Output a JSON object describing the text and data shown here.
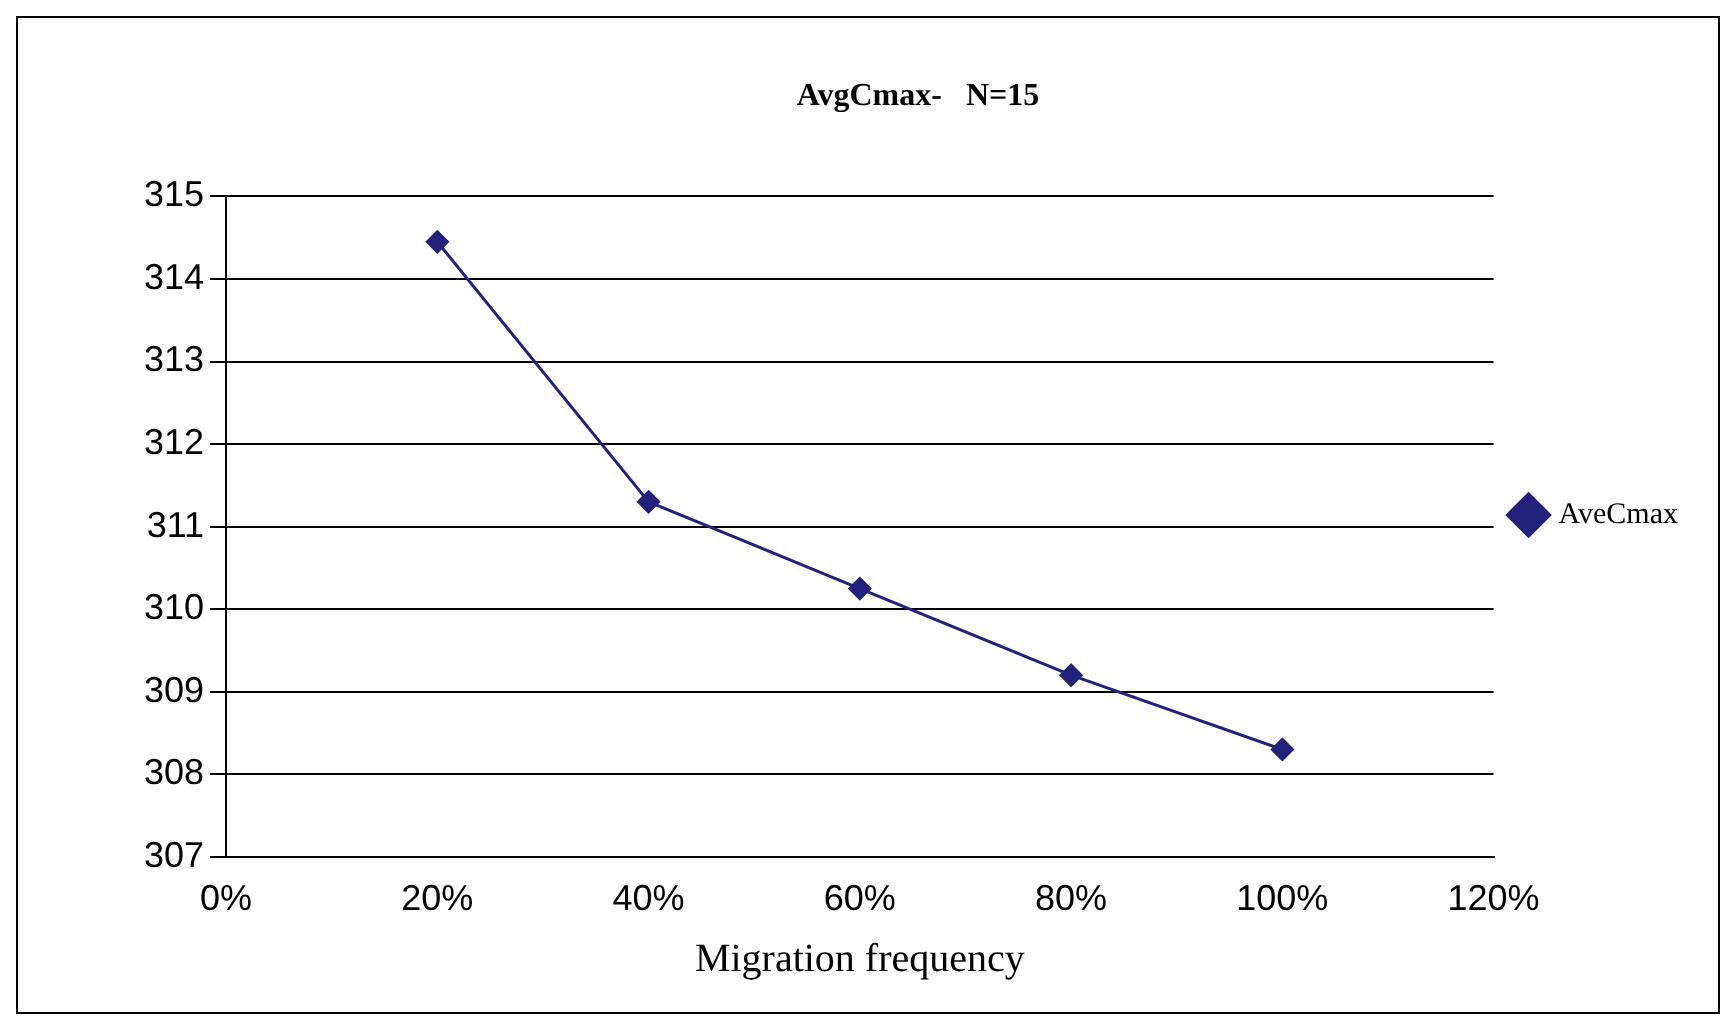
{
  "chart_data": {
    "type": "line",
    "title": "AvgCmax-   N=15",
    "xlabel": "Migration frequency",
    "x": [
      20,
      40,
      60,
      80,
      100
    ],
    "series": [
      {
        "name": "AveCmax",
        "color": "#22227a",
        "values": [
          314.45,
          311.3,
          310.25,
          309.2,
          308.3
        ]
      }
    ],
    "xlim": [
      0,
      120
    ],
    "xticks": [
      {
        "value": 0,
        "label": "0%"
      },
      {
        "value": 20,
        "label": "20%"
      },
      {
        "value": 40,
        "label": "40%"
      },
      {
        "value": 60,
        "label": "60%"
      },
      {
        "value": 80,
        "label": "80%"
      },
      {
        "value": 100,
        "label": "100%"
      },
      {
        "value": 120,
        "label": "120%"
      }
    ],
    "ylim": [
      307,
      315
    ],
    "yticks": [
      307,
      308,
      309,
      310,
      311,
      312,
      313,
      314,
      315
    ],
    "grid": "y",
    "legend": "right",
    "marker": "diamond",
    "line_style": "solid"
  }
}
